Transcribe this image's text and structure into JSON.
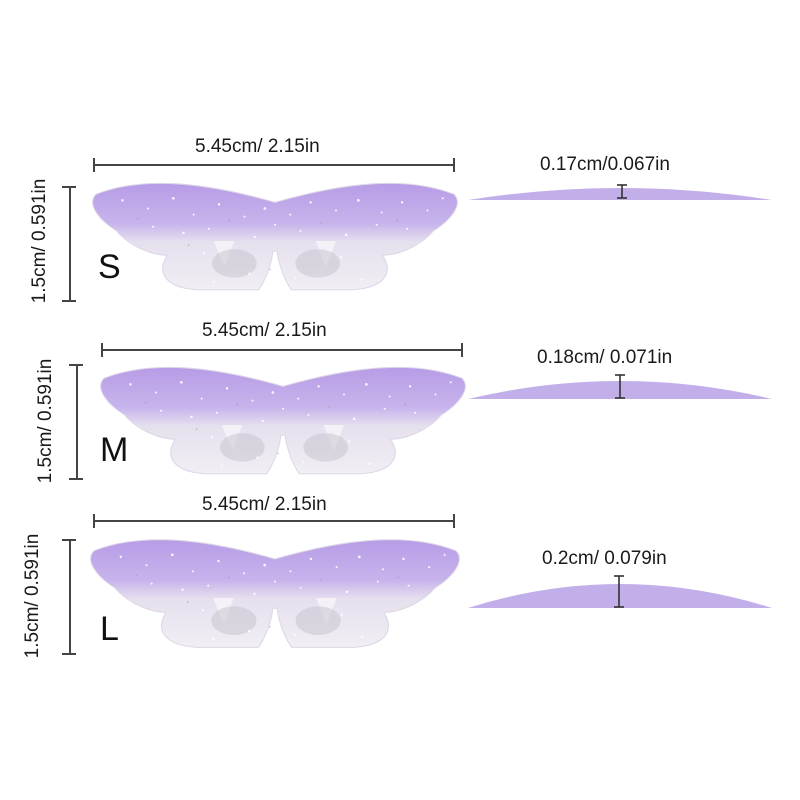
{
  "colors": {
    "patch_purple": "#b79ce6",
    "patch_light": "#eeeaf3",
    "curve_purple": "#c2afe9",
    "line": "#444444"
  },
  "sizes": [
    {
      "letter": "S",
      "width": "5.45cm/ 2.15in",
      "height": "1.5cm/ 0.591in",
      "thickness": "0.17cm/0.067in"
    },
    {
      "letter": "M",
      "width": "5.45cm/ 2.15in",
      "height": "1.5cm/ 0.591in",
      "thickness": "0.18cm/ 0.071in"
    },
    {
      "letter": "L",
      "width": "5.45cm/ 2.15in",
      "height": "1.5cm/ 0.591in",
      "thickness": "0.2cm/ 0.079in"
    }
  ]
}
